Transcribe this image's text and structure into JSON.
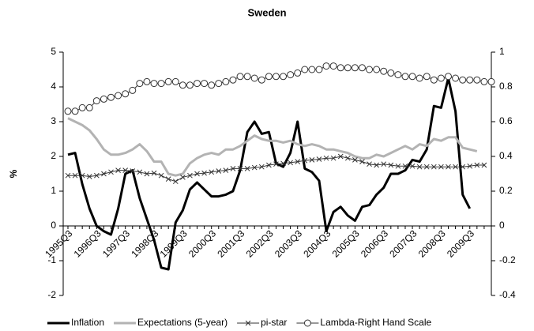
{
  "chart_data": {
    "type": "line",
    "title": "Sweden",
    "y_label": "%",
    "categories": [
      "1995Q3",
      null,
      null,
      null,
      "1996Q3",
      null,
      null,
      null,
      "1997Q3",
      null,
      null,
      null,
      "1998Q3",
      null,
      null,
      null,
      "1999Q3",
      null,
      null,
      null,
      "2000Q3",
      null,
      null,
      null,
      "2001Q3",
      null,
      null,
      null,
      "2002Q3",
      null,
      null,
      null,
      "2003Q3",
      null,
      null,
      null,
      "2004Q3",
      null,
      null,
      null,
      "2005Q3",
      null,
      null,
      null,
      "2006Q3",
      null,
      null,
      null,
      "2007Q3",
      null,
      null,
      null,
      "2008Q3",
      null,
      null,
      null,
      "2009Q3",
      null,
      null,
      null
    ],
    "ylim": [
      -2,
      5
    ],
    "yticks": [
      -2,
      -1,
      0,
      1,
      2,
      3,
      4,
      5
    ],
    "y2lim": [
      -0.4,
      1
    ],
    "y2ticks": [
      -0.4,
      -0.2,
      0,
      0.2,
      0.4,
      0.6,
      0.8,
      1
    ],
    "grid": false,
    "legend": "bottom",
    "series": [
      {
        "name": "Inflation",
        "color": "#000000",
        "width": 3,
        "marker": "none",
        "values": [
          2.05,
          2.1,
          1.2,
          0.5,
          0.0,
          -0.15,
          -0.25,
          0.5,
          1.5,
          1.6,
          0.8,
          0.2,
          -0.4,
          -1.2,
          -1.25,
          0.1,
          0.45,
          1.05,
          1.25,
          1.05,
          0.85,
          0.85,
          0.9,
          1.0,
          1.6,
          2.7,
          3.0,
          2.65,
          2.7,
          1.8,
          1.7,
          2.1,
          3.0,
          1.65,
          1.55,
          1.3,
          -0.15,
          0.4,
          0.55,
          0.3,
          0.15,
          0.55,
          0.6,
          0.9,
          1.1,
          1.5,
          1.5,
          1.6,
          1.9,
          1.85,
          2.2,
          3.45,
          3.4,
          4.25,
          3.3,
          0.9,
          0.5,
          null,
          null,
          null
        ]
      },
      {
        "name": "Expectations (5-year)",
        "color": "#b3b3b3",
        "width": 3,
        "marker": "none",
        "values": [
          3.1,
          3.0,
          2.9,
          2.75,
          2.5,
          2.2,
          2.05,
          2.05,
          2.1,
          2.2,
          2.35,
          2.15,
          1.85,
          1.85,
          1.5,
          1.45,
          1.5,
          1.8,
          1.95,
          2.05,
          2.1,
          2.05,
          2.2,
          2.2,
          2.3,
          2.45,
          2.6,
          2.5,
          2.45,
          2.45,
          2.4,
          2.45,
          2.35,
          2.3,
          2.35,
          2.3,
          2.2,
          2.2,
          2.15,
          2.1,
          2.0,
          1.95,
          1.95,
          2.05,
          2.0,
          2.1,
          2.2,
          2.3,
          2.2,
          2.35,
          2.3,
          2.5,
          2.45,
          2.55,
          2.55,
          2.25,
          2.2,
          2.15,
          null,
          null
        ]
      },
      {
        "name": "pi-star",
        "color": "#333333",
        "width": 1,
        "marker": "x",
        "values": [
          1.45,
          1.45,
          1.45,
          1.42,
          1.45,
          1.5,
          1.55,
          1.6,
          1.6,
          1.58,
          1.55,
          1.5,
          1.52,
          1.45,
          1.35,
          1.28,
          1.4,
          1.45,
          1.5,
          1.52,
          1.55,
          1.58,
          1.6,
          1.65,
          1.65,
          1.65,
          1.68,
          1.7,
          1.75,
          1.78,
          1.8,
          1.82,
          1.85,
          1.88,
          1.9,
          1.92,
          1.95,
          1.95,
          2.0,
          1.95,
          1.9,
          1.85,
          1.78,
          1.75,
          1.78,
          1.75,
          1.72,
          1.72,
          1.72,
          1.7,
          1.7,
          1.7,
          1.7,
          1.7,
          1.7,
          1.7,
          1.72,
          1.75,
          1.75,
          null
        ]
      },
      {
        "name": "Lambda-Right Hand Scale",
        "color": "#333333",
        "width": 1,
        "marker": "circle",
        "axis": "y2",
        "values": [
          0.66,
          0.66,
          0.68,
          0.68,
          0.72,
          0.73,
          0.74,
          0.75,
          0.76,
          0.78,
          0.82,
          0.83,
          0.82,
          0.82,
          0.83,
          0.83,
          0.81,
          0.81,
          0.82,
          0.82,
          0.81,
          0.82,
          0.83,
          0.84,
          0.86,
          0.86,
          0.85,
          0.84,
          0.86,
          0.86,
          0.86,
          0.87,
          0.88,
          0.9,
          0.9,
          0.9,
          0.92,
          0.92,
          0.91,
          0.91,
          0.91,
          0.91,
          0.9,
          0.9,
          0.89,
          0.88,
          0.87,
          0.86,
          0.86,
          0.85,
          0.86,
          0.84,
          0.85,
          0.86,
          0.85,
          0.84,
          0.84,
          0.84,
          0.83,
          0.83
        ]
      }
    ]
  }
}
